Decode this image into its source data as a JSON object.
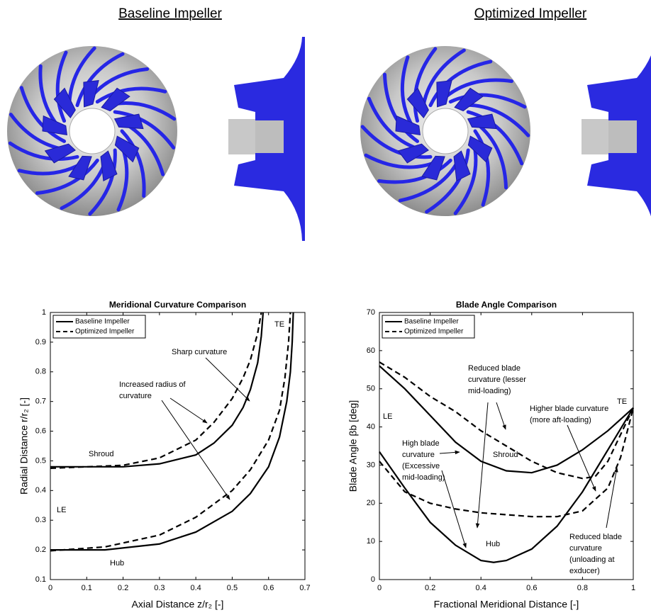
{
  "panels": [
    {
      "title": "Baseline Impeller"
    },
    {
      "title": "Optimized Impeller"
    }
  ],
  "chart_data": [
    {
      "type": "line",
      "title": "Meridional Curvature Comparison",
      "xlabel": "Axial Distance z/r₂ [-]",
      "ylabel": "Radial Distance r/r₂ [-]",
      "xlim": [
        0,
        0.7
      ],
      "ylim": [
        0.1,
        1
      ],
      "xticks": [
        0,
        0.1,
        0.2,
        0.3,
        0.4,
        0.5,
        0.6,
        0.7
      ],
      "yticks": [
        0.1,
        0.2,
        0.3,
        0.4,
        0.5,
        0.6,
        0.7,
        0.8,
        0.9,
        1
      ],
      "legend": "upper left",
      "series": [
        {
          "name": "Baseline Impeller",
          "color": "#000000",
          "dash": false,
          "x": [
            0,
            0.2,
            0.3,
            0.4,
            0.45,
            0.5,
            0.53,
            0.55,
            0.57,
            0.58,
            0.585,
            null,
            0,
            0.15,
            0.3,
            0.4,
            0.5,
            0.55,
            0.6,
            0.63,
            0.65,
            0.66,
            0.665,
            0.668
          ],
          "values": [
            0.48,
            0.48,
            0.49,
            0.52,
            0.56,
            0.62,
            0.68,
            0.74,
            0.83,
            0.92,
            1,
            null,
            0.2,
            0.2,
            0.22,
            0.26,
            0.33,
            0.39,
            0.48,
            0.58,
            0.7,
            0.8,
            0.9,
            1
          ]
        },
        {
          "name": "Optimized Impeller",
          "color": "#000000",
          "dash": true,
          "x": [
            0,
            0.2,
            0.3,
            0.4,
            0.45,
            0.5,
            0.53,
            0.55,
            0.57,
            0.58,
            null,
            0,
            0.15,
            0.3,
            0.4,
            0.5,
            0.55,
            0.6,
            0.63,
            0.645,
            0.655,
            0.66
          ],
          "values": [
            0.475,
            0.485,
            0.51,
            0.57,
            0.63,
            0.71,
            0.78,
            0.84,
            0.93,
            1,
            null,
            0.197,
            0.21,
            0.25,
            0.31,
            0.4,
            0.47,
            0.57,
            0.67,
            0.78,
            0.9,
            1
          ]
        }
      ],
      "annotations": [
        [
          "TE"
        ],
        [
          "Sharp curvature"
        ],
        [
          "Increased radius of",
          "curvature"
        ],
        [
          "Shroud"
        ],
        [
          "LE"
        ],
        [
          "Hub"
        ]
      ]
    },
    {
      "type": "line",
      "title": "Blade Angle Comparison",
      "xlabel": "Fractional Meridional Distance [-]",
      "ylabel": "Blade Angle βb [deg]",
      "xlim": [
        0,
        1
      ],
      "ylim": [
        0,
        70
      ],
      "xticks": [
        0,
        0.2,
        0.4,
        0.6,
        0.8,
        1
      ],
      "yticks": [
        0,
        10,
        20,
        30,
        40,
        50,
        60,
        70
      ],
      "legend": "upper left",
      "series": [
        {
          "name": "Baseline Impeller",
          "color": "#000000",
          "dash": false,
          "x": [
            0,
            0.1,
            0.2,
            0.3,
            0.4,
            0.5,
            0.6,
            0.7,
            0.8,
            0.9,
            1,
            null,
            0,
            0.1,
            0.2,
            0.3,
            0.4,
            0.45,
            0.5,
            0.6,
            0.7,
            0.8,
            0.9,
            1
          ],
          "values": [
            56,
            50,
            43,
            36,
            31,
            28.5,
            28,
            30,
            34,
            39,
            45,
            null,
            33.5,
            24,
            15,
            9,
            5,
            4.5,
            5,
            8,
            14,
            23,
            34,
            45
          ]
        },
        {
          "name": "Optimized Impeller",
          "color": "#000000",
          "dash": true,
          "x": [
            0,
            0.1,
            0.2,
            0.3,
            0.4,
            0.5,
            0.6,
            0.7,
            0.8,
            0.85,
            0.9,
            1,
            null,
            0,
            0.1,
            0.2,
            0.3,
            0.4,
            0.5,
            0.6,
            0.7,
            0.8,
            0.9,
            0.95,
            1
          ],
          "values": [
            57,
            53,
            48,
            44,
            39,
            35,
            31,
            28,
            26.5,
            27,
            31,
            45,
            null,
            31,
            23,
            20,
            18.5,
            17.5,
            17,
            16.5,
            16.5,
            18,
            24,
            32,
            45
          ]
        }
      ],
      "annotations": [
        [
          "Reduced blade",
          "curvature (lesser",
          "mid-loading)"
        ],
        [
          "LE"
        ],
        [
          "TE"
        ],
        [
          "Higher blade curvature",
          "(more aft-loading)"
        ],
        [
          "High blade",
          "curvature",
          "(Excessive",
          "mid-loading)"
        ],
        [
          "Shroud"
        ],
        [
          "Hub"
        ],
        [
          "Reduced blade",
          "curvature",
          "(unloading at",
          "exducer)"
        ]
      ]
    }
  ]
}
